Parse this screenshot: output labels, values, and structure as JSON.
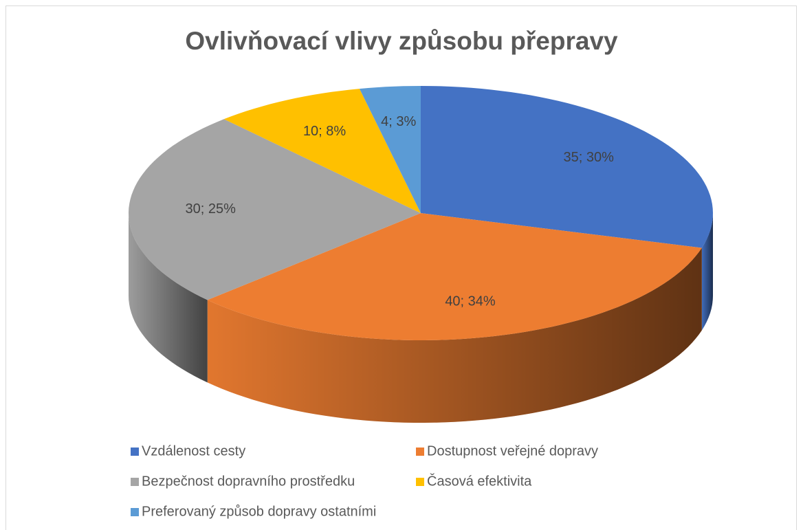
{
  "chart_data": {
    "type": "pie3d",
    "title": "Ovlivňovací vlivy způsobu přepravy",
    "categories": [
      "Vzdálenost cesty",
      "Dostupnost veřejné dopravy",
      "Bezpečnost dopravního prostředku",
      "Časová efektivita",
      "Preferovaný způsob dopravy ostatními"
    ],
    "values": [
      35,
      40,
      30,
      10,
      4
    ],
    "value_labels": [
      "35; 30%",
      "40; 34%",
      "30; 25%",
      "10; 8%",
      "4; 3%"
    ],
    "colors": [
      "#4472c4",
      "#ed7d31",
      "#a5a5a5",
      "#ffc000",
      "#5b9bd5"
    ],
    "legend": "bottom"
  }
}
